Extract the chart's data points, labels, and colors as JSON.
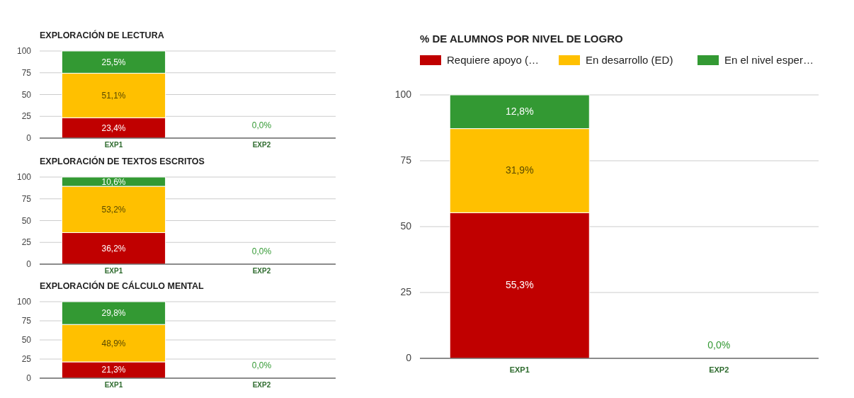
{
  "chart_data": [
    {
      "type": "bar",
      "stacked": true,
      "title": "EXPLORACIÓN DE LECTURA",
      "categories": [
        "EXP1",
        "EXP2"
      ],
      "ylim": [
        0,
        100
      ],
      "yticks": [
        0,
        25,
        50,
        75,
        100
      ],
      "grid": "y",
      "legend": false,
      "series": [
        {
          "color": "#c00000",
          "values": [
            23.4,
            0
          ],
          "value_labels": [
            "23,4%",
            null
          ]
        },
        {
          "color": "#ffc000",
          "values": [
            51.1,
            0
          ],
          "value_labels": [
            "51,1%",
            null
          ]
        },
        {
          "color": "#339933",
          "values": [
            25.5,
            0
          ],
          "value_labels": [
            "25,5%",
            "0,0%"
          ]
        }
      ]
    },
    {
      "type": "bar",
      "stacked": true,
      "title": "EXPLORACIÓN DE TEXTOS ESCRITOS",
      "categories": [
        "EXP1",
        "EXP2"
      ],
      "ylim": [
        0,
        100
      ],
      "yticks": [
        0,
        25,
        50,
        75,
        100
      ],
      "grid": "y",
      "legend": false,
      "series": [
        {
          "color": "#c00000",
          "values": [
            36.2,
            0
          ],
          "value_labels": [
            "36,2%",
            null
          ]
        },
        {
          "color": "#ffc000",
          "values": [
            53.2,
            0
          ],
          "value_labels": [
            "53,2%",
            null
          ]
        },
        {
          "color": "#339933",
          "values": [
            10.6,
            0
          ],
          "value_labels": [
            "10,6%",
            "0,0%"
          ]
        }
      ]
    },
    {
      "type": "bar",
      "stacked": true,
      "title": "EXPLORACIÓN DE CÁLCULO MENTAL",
      "categories": [
        "EXP1",
        "EXP2"
      ],
      "ylim": [
        0,
        100
      ],
      "yticks": [
        0,
        25,
        50,
        75,
        100
      ],
      "grid": "y",
      "legend": false,
      "series": [
        {
          "color": "#c00000",
          "values": [
            21.3,
            0
          ],
          "value_labels": [
            "21,3%",
            null
          ]
        },
        {
          "color": "#ffc000",
          "values": [
            48.9,
            0
          ],
          "value_labels": [
            "48,9%",
            null
          ]
        },
        {
          "color": "#339933",
          "values": [
            29.8,
            0
          ],
          "value_labels": [
            "29,8%",
            "0,0%"
          ]
        }
      ]
    },
    {
      "type": "bar",
      "stacked": true,
      "title": "% DE ALUMNOS POR NIVEL DE LOGRO",
      "categories": [
        "EXP1",
        "EXP2"
      ],
      "ylim": [
        0,
        100
      ],
      "yticks": [
        0,
        25,
        50,
        75,
        100
      ],
      "grid": "y",
      "legend": "top",
      "series": [
        {
          "name": "Requiere apoyo (…",
          "color": "#c00000",
          "values": [
            55.3,
            0
          ],
          "value_labels": [
            "55,3%",
            null
          ]
        },
        {
          "name": "En desarrollo (ED)",
          "color": "#ffc000",
          "values": [
            31.9,
            0
          ],
          "value_labels": [
            "31,9%",
            null
          ]
        },
        {
          "name": "En el nivel esper…",
          "color": "#339933",
          "values": [
            12.8,
            0
          ],
          "value_labels": [
            "12,8%",
            "0,0%"
          ]
        }
      ]
    }
  ]
}
